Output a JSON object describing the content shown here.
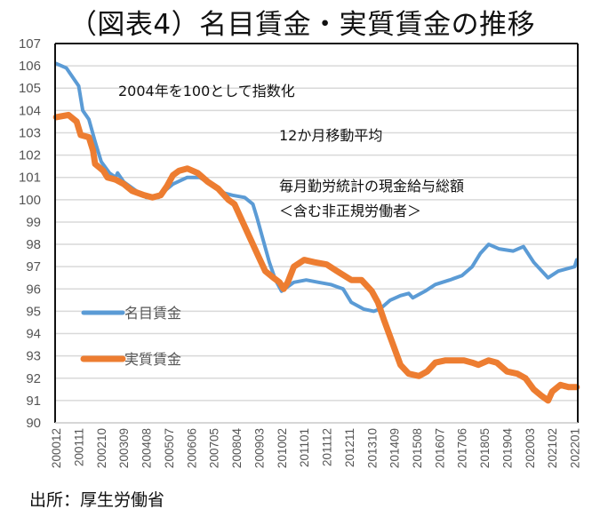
{
  "title": "（図表4）名目賃金・実質賃金の推移",
  "source": "出所：厚生労働省",
  "chart_data": {
    "type": "line",
    "title": "（図表4）名目賃金・実質賃金の推移",
    "xlabel": "",
    "ylabel": "",
    "ylim": [
      90,
      107
    ],
    "yticks": [
      "90",
      "91",
      "92",
      "93",
      "94",
      "95",
      "96",
      "97",
      "98",
      "99",
      "100",
      "101",
      "102",
      "103",
      "104",
      "105",
      "106",
      "107"
    ],
    "x_start": "200012",
    "x_tick_labels": [
      "200012",
      "200111",
      "200210",
      "200309",
      "200408",
      "200507",
      "200606",
      "200705",
      "200804",
      "200903",
      "201002",
      "201101",
      "201112",
      "201211",
      "201310",
      "201409",
      "201508",
      "201607",
      "201706",
      "201805",
      "201904",
      "202003",
      "202102",
      "202201"
    ],
    "x_tick_every_months": 11,
    "x_total_months": 255,
    "grid": "horizontal",
    "legend_position": "left-middle",
    "annotations": [
      "2004年を100として指数化",
      "12か月移動平均",
      "毎月勤労統計の現金給与総額",
      "＜含む非正規労働者＞"
    ],
    "series": [
      {
        "name": "名目賃金",
        "color": "#5b9bd5",
        "month_index": [
          0,
          5,
          11,
          13,
          16,
          19,
          22,
          26,
          29,
          30,
          33,
          39,
          44,
          50,
          53,
          57,
          64,
          70,
          77,
          82,
          86,
          92,
          96,
          98,
          101,
          104,
          107,
          110,
          116,
          122,
          128,
          134,
          140,
          144,
          150,
          155,
          158,
          163,
          168,
          172,
          174,
          180,
          185,
          192,
          198,
          203,
          207,
          211,
          216,
          223,
          228,
          233,
          237,
          240,
          245,
          249,
          253,
          254
        ],
        "values": [
          106.1,
          105.9,
          105.1,
          104.0,
          103.6,
          102.6,
          101.7,
          101.2,
          101.0,
          101.2,
          100.8,
          100.4,
          100.1,
          100.1,
          100.4,
          100.7,
          101.0,
          101.0,
          100.6,
          100.3,
          100.2,
          100.1,
          99.8,
          99.2,
          98.2,
          97.2,
          96.4,
          95.9,
          96.3,
          96.4,
          96.3,
          96.2,
          96.0,
          95.4,
          95.1,
          95.0,
          95.1,
          95.5,
          95.7,
          95.8,
          95.6,
          95.9,
          96.2,
          96.4,
          96.6,
          97.0,
          97.6,
          98.0,
          97.8,
          97.7,
          97.9,
          97.2,
          96.8,
          96.5,
          96.8,
          96.9,
          97.0,
          97.3
        ]
      },
      {
        "name": "実質賃金",
        "color": "#ed7d31",
        "month_index": [
          0,
          6,
          10,
          12,
          16,
          18,
          19,
          23,
          25,
          29,
          33,
          37,
          43,
          47,
          51,
          54,
          57,
          60,
          64,
          69,
          74,
          79,
          84,
          87,
          91,
          95,
          99,
          102,
          106,
          109,
          111,
          113,
          116,
          121,
          126,
          132,
          137,
          144,
          149,
          154,
          157,
          160,
          164,
          168,
          172,
          177,
          181,
          185,
          190,
          195,
          199,
          203,
          206,
          211,
          215,
          220,
          225,
          229,
          233,
          237,
          240,
          242,
          246,
          250,
          254
        ],
        "values": [
          103.7,
          103.8,
          103.5,
          102.9,
          102.8,
          102.2,
          101.6,
          101.3,
          101.0,
          100.9,
          100.7,
          100.4,
          100.2,
          100.1,
          100.2,
          100.6,
          101.1,
          101.3,
          101.4,
          101.2,
          100.8,
          100.5,
          100.0,
          99.8,
          99.0,
          98.2,
          97.4,
          96.8,
          96.5,
          96.3,
          96.0,
          96.3,
          97.0,
          97.3,
          97.2,
          97.1,
          96.8,
          96.4,
          96.4,
          95.9,
          95.4,
          94.6,
          93.6,
          92.6,
          92.2,
          92.1,
          92.3,
          92.7,
          92.8,
          92.8,
          92.8,
          92.7,
          92.6,
          92.8,
          92.7,
          92.3,
          92.2,
          92.0,
          91.5,
          91.2,
          91.0,
          91.4,
          91.7,
          91.6,
          91.6
        ]
      }
    ]
  }
}
